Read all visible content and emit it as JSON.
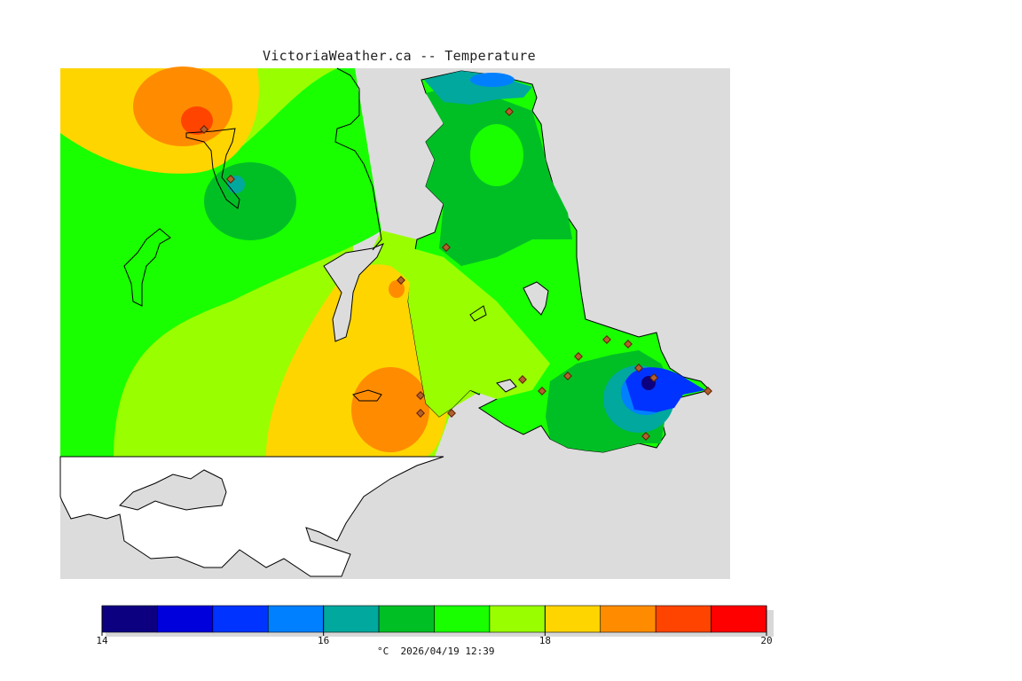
{
  "title": "VictoriaWeather.ca -- Temperature",
  "legend": {
    "min": 14,
    "max": 20,
    "tick_labels": [
      "14",
      "16",
      "18",
      "20"
    ],
    "bins": [
      {
        "from": 14.0,
        "to": 14.5,
        "color": "#0d0080"
      },
      {
        "from": 14.5,
        "to": 15.0,
        "color": "#0000dc"
      },
      {
        "from": 15.0,
        "to": 15.5,
        "color": "#0033ff"
      },
      {
        "from": 15.5,
        "to": 16.0,
        "color": "#0080ff"
      },
      {
        "from": 16.0,
        "to": 16.5,
        "color": "#00a89e"
      },
      {
        "from": 16.5,
        "to": 17.0,
        "color": "#00bf25"
      },
      {
        "from": 17.0,
        "to": 17.5,
        "color": "#19ff00"
      },
      {
        "from": 17.5,
        "to": 18.0,
        "color": "#99ff00"
      },
      {
        "from": 18.0,
        "to": 18.5,
        "color": "#ffd500"
      },
      {
        "from": 18.5,
        "to": 19.0,
        "color": "#ff8c00"
      },
      {
        "from": 19.0,
        "to": 19.5,
        "color": "#ff4400"
      },
      {
        "from": 19.5,
        "to": 20.0,
        "color": "#ff0000"
      }
    ],
    "footer": "°C  2026/04/19 12:39"
  },
  "colors": {
    "water": "#dcdcdc",
    "nodata_land": "#ffffff",
    "coastline": "#000000",
    "station_marker": "#b06030"
  }
}
